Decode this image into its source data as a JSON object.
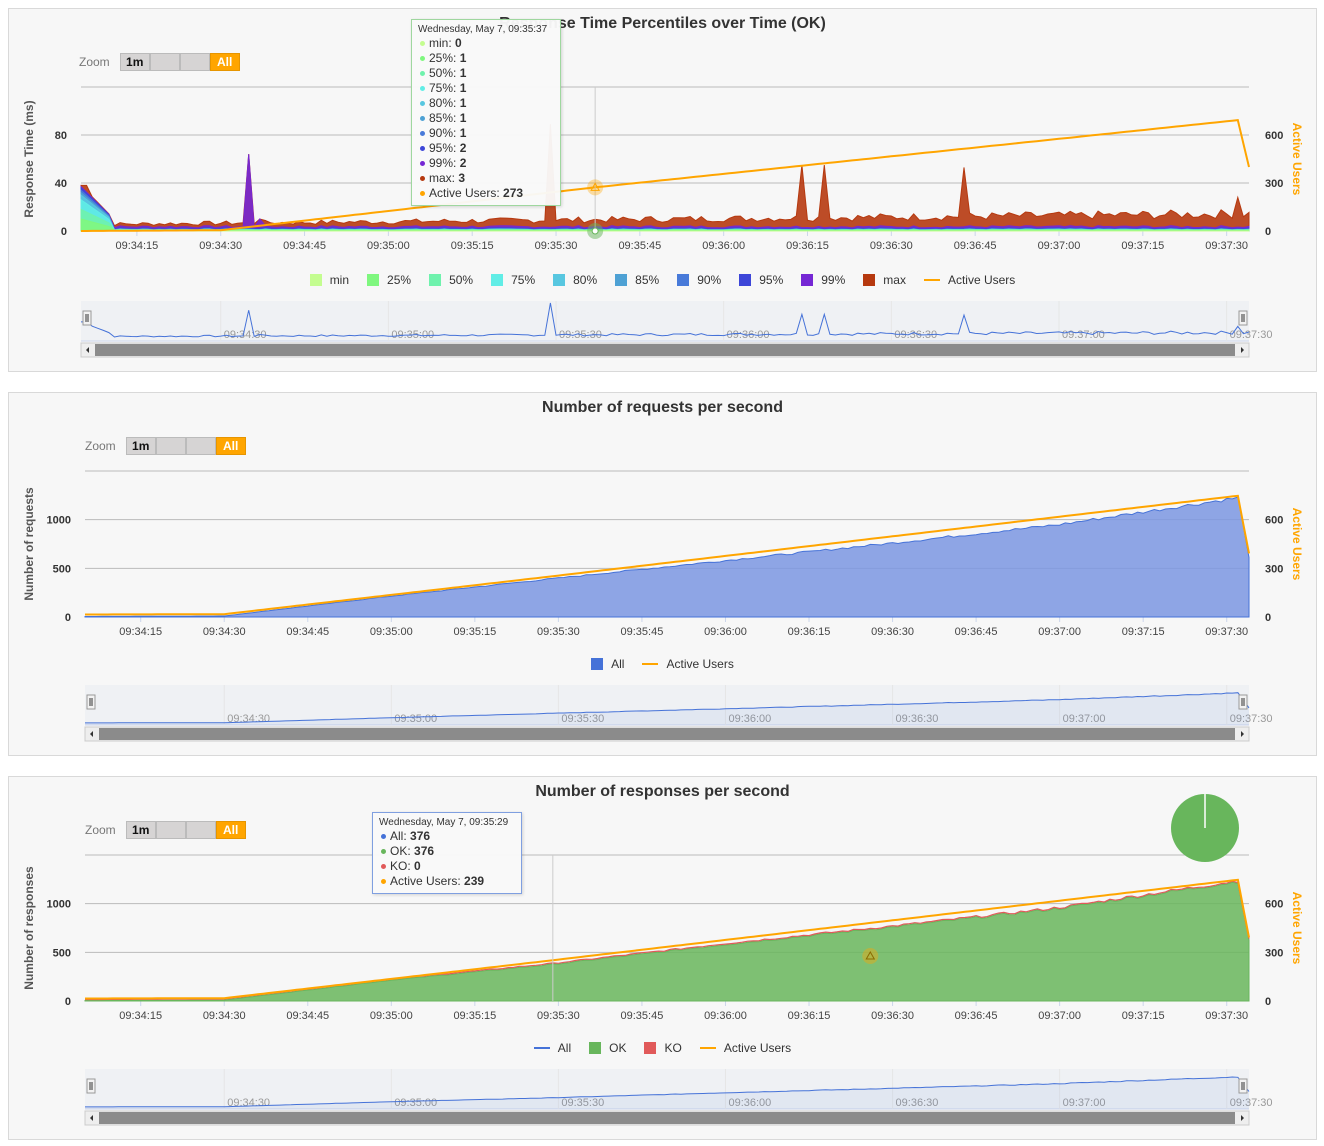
{
  "colors": {
    "active_users": "#ffa500",
    "all": "#4572d8",
    "ok": "#68b65c",
    "ko": "#e15a5a",
    "min": "#c4fd90",
    "p25": "#7ff77f",
    "p50": "#6ff2ad",
    "p75": "#61ede6",
    "p80": "#58c7e0",
    "p85": "#4ea1d4",
    "p90": "#487ad9",
    "p95": "#3d46d8",
    "p99": "#7527d4",
    "max": "#b6390f"
  },
  "time_ticks": [
    "09:34:15",
    "09:34:30",
    "09:34:45",
    "09:35:00",
    "09:35:15",
    "09:35:30",
    "09:35:45",
    "09:36:00",
    "09:36:15",
    "09:36:30",
    "09:36:45",
    "09:37:00",
    "09:37:15",
    "09:37:30"
  ],
  "navigator_ticks": [
    "09:34:30",
    "09:35:00",
    "09:35:30",
    "09:36:00",
    "09:36:30",
    "09:37:00",
    "09:37:30"
  ],
  "zoom": {
    "label": "Zoom",
    "btn_1m": "1m",
    "btn_all": "All"
  },
  "chart1": {
    "title": "Response Time Percentiles over Time (OK)",
    "ylabel": "Response Time (ms)",
    "y2label": "Active Users",
    "yticks": [
      "0",
      "40",
      "80"
    ],
    "y2ticks": [
      "0",
      "300",
      "600"
    ],
    "legend": [
      "min",
      "25%",
      "50%",
      "75%",
      "80%",
      "85%",
      "90%",
      "95%",
      "99%",
      "max",
      "Active Users"
    ],
    "tooltip": {
      "header": "Wednesday, May 7, 09:35:37",
      "rows": [
        {
          "label": "min: ",
          "value": "0"
        },
        {
          "label": "25%: ",
          "value": "1"
        },
        {
          "label": "50%: ",
          "value": "1"
        },
        {
          "label": "75%: ",
          "value": "1"
        },
        {
          "label": "80%: ",
          "value": "1"
        },
        {
          "label": "85%: ",
          "value": "1"
        },
        {
          "label": "90%: ",
          "value": "1"
        },
        {
          "label": "95%: ",
          "value": "2"
        },
        {
          "label": "99%: ",
          "value": "2"
        },
        {
          "label": "max: ",
          "value": "3"
        },
        {
          "label": "Active Users: ",
          "value": "273"
        }
      ]
    }
  },
  "chart2": {
    "title": "Number of requests per second",
    "ylabel": "Number of requests",
    "y2label": "Active Users",
    "yticks": [
      "0",
      "500",
      "1000"
    ],
    "y2ticks": [
      "0",
      "300",
      "600"
    ],
    "legend": [
      "All",
      "Active Users"
    ]
  },
  "chart3": {
    "title": "Number of responses per second",
    "ylabel": "Number of responses",
    "y2label": "Active Users",
    "yticks": [
      "0",
      "500",
      "1000"
    ],
    "y2ticks": [
      "0",
      "300",
      "600"
    ],
    "legend": [
      "All",
      "OK",
      "KO",
      "Active Users"
    ],
    "tooltip": {
      "header": "Wednesday, May 7, 09:35:29",
      "rows": [
        {
          "label": "All: ",
          "value": "376"
        },
        {
          "label": "OK: ",
          "value": "376"
        },
        {
          "label": "KO: ",
          "value": "0"
        },
        {
          "label": "Active Users: ",
          "value": "239"
        }
      ]
    },
    "pie": {
      "ok": 376,
      "ko": 0
    }
  },
  "chart_data": [
    {
      "type": "area",
      "title": "Response Time Percentiles over Time (OK)",
      "ylabel": "Response Time (ms)",
      "y2label": "Active Users",
      "ylim": [
        0,
        120
      ],
      "y2lim": [
        0,
        900
      ],
      "x_start": "09:34:05",
      "x_end": "09:37:34",
      "spikes": [
        {
          "time": "09:34:06",
          "ms": 38
        },
        {
          "time": "09:34:07",
          "ms": 22
        },
        {
          "time": "09:34:35",
          "ms": 64,
          "series": "99%"
        },
        {
          "time": "09:34:37",
          "ms": 10,
          "series": "99%"
        },
        {
          "time": "09:35:29",
          "ms": 89
        },
        {
          "time": "09:36:14",
          "ms": 55,
          "series": "max"
        },
        {
          "time": "09:36:18",
          "ms": 55,
          "series": "max"
        },
        {
          "time": "09:36:43",
          "ms": 53,
          "series": "max"
        },
        {
          "time": "09:37:32",
          "ms": 28,
          "series": "max"
        }
      ],
      "series": [
        {
          "name": "min",
          "typical": 0
        },
        {
          "name": "25%",
          "typical": 1
        },
        {
          "name": "50%",
          "typical": 1
        },
        {
          "name": "75%",
          "typical": 1
        },
        {
          "name": "80%",
          "typical": 1
        },
        {
          "name": "85%",
          "typical": 1
        },
        {
          "name": "90%",
          "typical": 1
        },
        {
          "name": "95%",
          "typical": 2
        },
        {
          "name": "99%",
          "typical": 4
        },
        {
          "name": "max",
          "typical": 8
        },
        {
          "name": "Active Users",
          "axis": "right",
          "x": [
            "09:34:05",
            "09:34:30",
            "09:35:37",
            "09:37:32",
            "09:37:34"
          ],
          "values": [
            0,
            5,
            273,
            693,
            400
          ]
        }
      ]
    },
    {
      "type": "area",
      "title": "Number of requests per second",
      "ylabel": "Number of requests",
      "y2label": "Active Users",
      "ylim": [
        0,
        1500
      ],
      "y2lim": [
        0,
        900
      ],
      "series": [
        {
          "name": "All",
          "x": [
            "09:34:05",
            "09:34:30",
            "09:35:00",
            "09:35:30",
            "09:36:00",
            "09:36:30",
            "09:37:00",
            "09:37:32",
            "09:37:34"
          ],
          "values": [
            5,
            10,
            215,
            400,
            580,
            760,
            950,
            1225,
            620
          ]
        },
        {
          "name": "Active Users",
          "axis": "right",
          "x": [
            "09:34:05",
            "09:34:30",
            "09:35:29",
            "09:37:32",
            "09:37:34"
          ],
          "values": [
            3,
            5,
            239,
            735,
            380
          ]
        }
      ]
    },
    {
      "type": "area",
      "title": "Number of responses per second",
      "ylabel": "Number of responses",
      "y2label": "Active Users",
      "ylim": [
        0,
        1500
      ],
      "y2lim": [
        0,
        900
      ],
      "series": [
        {
          "name": "All",
          "x": [
            "09:34:05",
            "09:34:30",
            "09:35:00",
            "09:35:29",
            "09:36:00",
            "09:36:30",
            "09:37:00",
            "09:37:32",
            "09:37:34"
          ],
          "values": [
            5,
            10,
            215,
            376,
            580,
            760,
            950,
            1225,
            620
          ]
        },
        {
          "name": "OK",
          "x": [
            "09:34:05",
            "09:34:30",
            "09:35:00",
            "09:35:29",
            "09:36:00",
            "09:36:30",
            "09:37:00",
            "09:37:32",
            "09:37:34"
          ],
          "values": [
            5,
            10,
            215,
            376,
            580,
            760,
            950,
            1225,
            620
          ]
        },
        {
          "name": "KO",
          "values": [
            0
          ]
        },
        {
          "name": "Active Users",
          "axis": "right",
          "x": [
            "09:34:05",
            "09:34:30",
            "09:35:29",
            "09:37:32",
            "09:37:34"
          ],
          "values": [
            3,
            5,
            239,
            735,
            380
          ]
        }
      ]
    }
  ]
}
